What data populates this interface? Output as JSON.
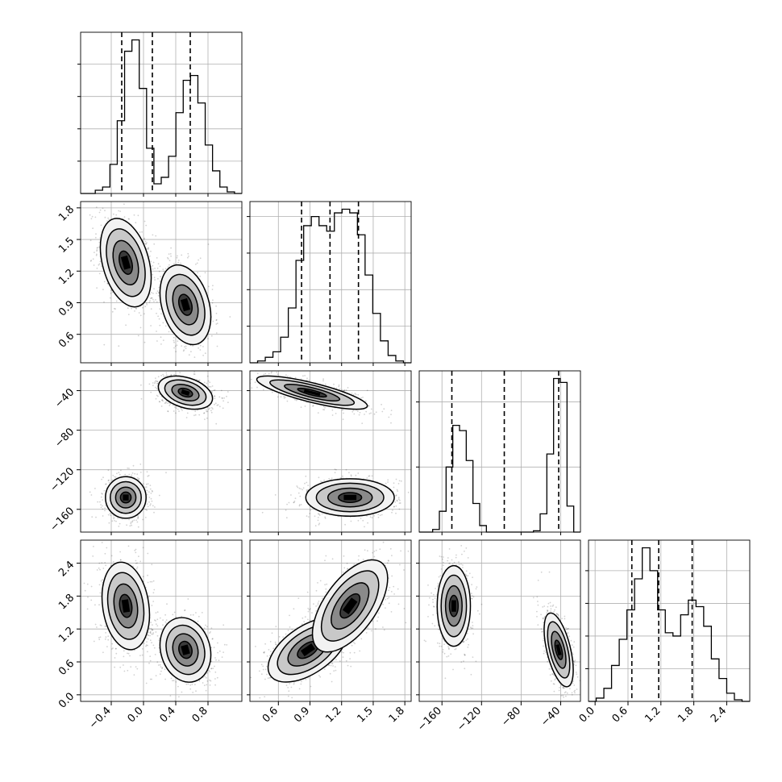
{
  "chart_data": {
    "type": "corner",
    "title": "",
    "parameters": [
      "",
      "",
      "",
      ""
    ],
    "grid": true,
    "quantile_lines": "dashed",
    "colors": {
      "ink": "#000000",
      "grid": "#b0b0b0",
      "background": "#ffffff"
    },
    "quantiles": [
      [
        -0.27,
        0.11,
        0.58
      ],
      [
        0.82,
        1.09,
        1.36
      ],
      [
        -150,
        -97,
        -42
      ],
      [
        0.67,
        1.16,
        1.77
      ]
    ],
    "axes": [
      {
        "range": [
          -0.78,
          1.22
        ],
        "ticks": [
          -0.4,
          0.0,
          0.4,
          0.8
        ],
        "tick_labels": [
          "−0.4",
          "0.0",
          "0.4",
          "0.8"
        ]
      },
      {
        "range": [
          0.33,
          1.86
        ],
        "ticks": [
          0.6,
          0.9,
          1.2,
          1.5,
          1.8
        ],
        "tick_labels": [
          "0.6",
          "0.9",
          "1.2",
          "1.5",
          "1.8"
        ]
      },
      {
        "range": [
          -183,
          -20
        ],
        "ticks": [
          -160,
          -120,
          -80,
          -40
        ],
        "tick_labels": [
          "−160",
          "−120",
          "−80",
          "−40"
        ]
      },
      {
        "range": [
          -0.12,
          2.82
        ],
        "ticks": [
          0.0,
          0.6,
          1.2,
          1.8,
          2.4
        ],
        "tick_labels": [
          "0.0",
          "0.6",
          "1.2",
          "1.8",
          "2.4"
        ]
      }
    ],
    "histograms": [
      {
        "edges_range": [
          -0.78,
          1.22
        ],
        "counts": [
          0,
          0,
          2,
          4,
          18,
          45,
          88,
          95,
          65,
          28,
          6,
          10,
          23,
          50,
          70,
          73,
          56,
          30,
          14,
          4,
          1,
          0
        ]
      },
      {
        "edges_range": [
          0.33,
          1.86
        ],
        "counts": [
          0,
          1,
          3,
          6,
          14,
          30,
          56,
          75,
          80,
          75,
          72,
          82,
          84,
          82,
          70,
          48,
          27,
          12,
          4,
          1,
          0
        ]
      },
      {
        "edges_range": [
          -183,
          -20
        ],
        "counts": [
          0,
          0,
          2,
          16,
          50,
          82,
          78,
          55,
          22,
          5,
          0,
          0,
          0,
          0,
          0,
          0,
          0,
          1,
          14,
          60,
          118,
          115,
          20,
          0
        ]
      },
      {
        "edges_range": [
          -0.12,
          2.82
        ],
        "counts": [
          0,
          2,
          8,
          22,
          38,
          56,
          75,
          94,
          80,
          56,
          42,
          40,
          53,
          62,
          58,
          46,
          26,
          14,
          5,
          1,
          0
        ]
      }
    ],
    "joint_modes": [
      {
        "pair": [
          0,
          1
        ],
        "modes": [
          {
            "x": -0.22,
            "y": 1.28,
            "sx": 0.15,
            "sy": 0.2,
            "rho": -0.35
          },
          {
            "x": 0.52,
            "y": 0.88,
            "sx": 0.15,
            "sy": 0.18,
            "rho": -0.3
          }
        ]
      },
      {
        "pair": [
          0,
          2
        ],
        "modes": [
          {
            "x": 0.52,
            "y": -42,
            "sx": 0.16,
            "sy": 8,
            "rho": -0.35
          },
          {
            "x": -0.22,
            "y": -148,
            "sx": 0.12,
            "sy": 10,
            "rho": 0
          }
        ]
      },
      {
        "pair": [
          1,
          2
        ],
        "modes": [
          {
            "x": 0.92,
            "y": -42,
            "sx": 0.25,
            "sy": 8,
            "rho": -0.8
          },
          {
            "x": 1.28,
            "y": -148,
            "sx": 0.2,
            "sy": 9,
            "rho": 0
          }
        ]
      },
      {
        "pair": [
          0,
          3
        ],
        "modes": [
          {
            "x": -0.22,
            "y": 1.62,
            "sx": 0.14,
            "sy": 0.38,
            "rho": -0.2
          },
          {
            "x": 0.52,
            "y": 0.82,
            "sx": 0.15,
            "sy": 0.28,
            "rho": -0.15
          }
        ]
      },
      {
        "pair": [
          1,
          3
        ],
        "modes": [
          {
            "x": 0.88,
            "y": 0.82,
            "sx": 0.18,
            "sy": 0.28,
            "rho": 0.55
          },
          {
            "x": 1.28,
            "y": 1.62,
            "sx": 0.17,
            "sy": 0.4,
            "rho": 0.6
          }
        ]
      },
      {
        "pair": [
          2,
          3
        ],
        "modes": [
          {
            "x": -148,
            "y": 1.62,
            "sx": 8,
            "sy": 0.35,
            "rho": 0
          },
          {
            "x": -42,
            "y": 0.82,
            "sx": 7,
            "sy": 0.32,
            "rho": -0.55
          }
        ]
      }
    ]
  }
}
